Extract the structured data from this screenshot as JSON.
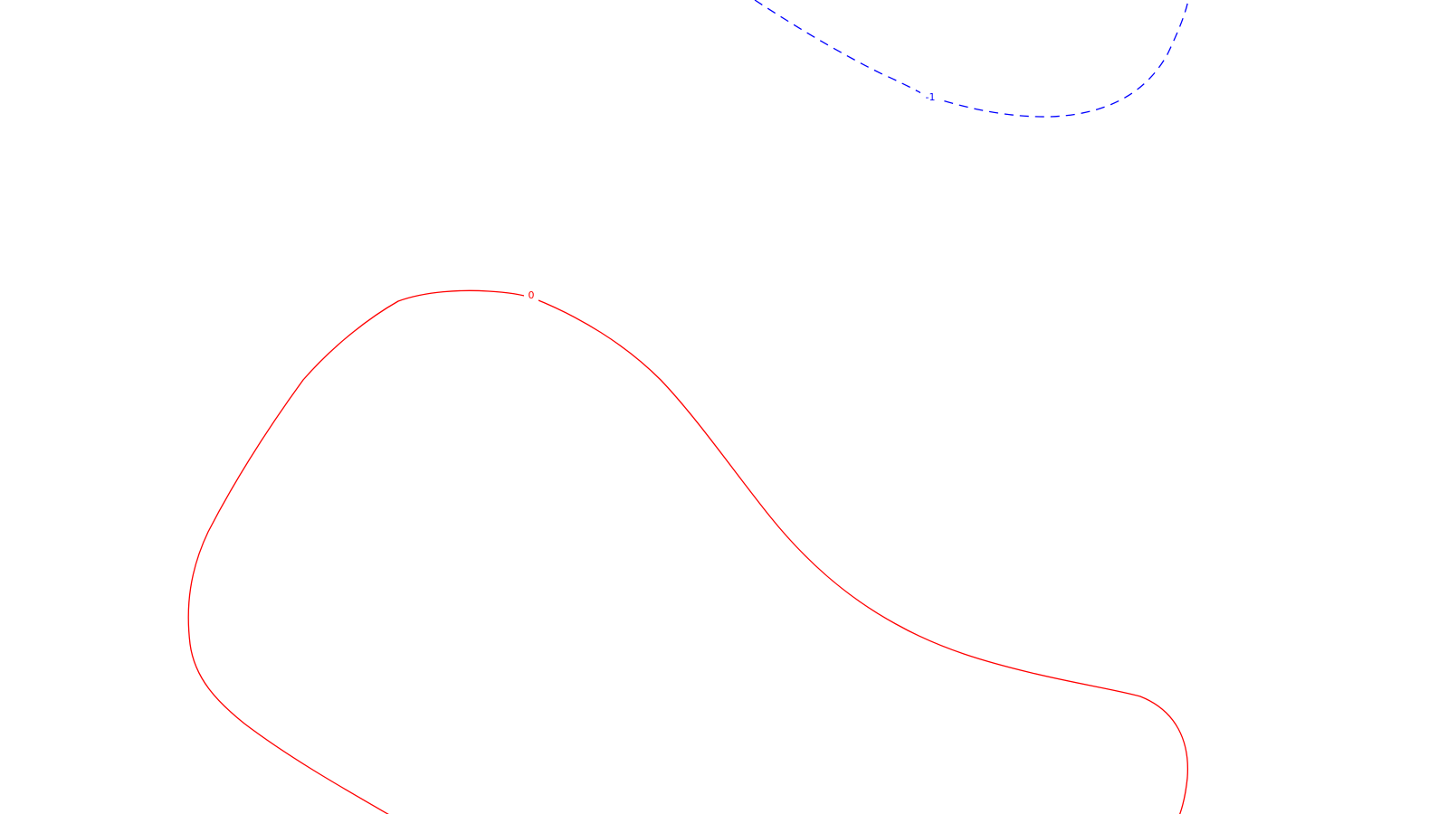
{
  "chart_data": {
    "type": "line",
    "title": "",
    "xlabel": "",
    "ylabel": "",
    "grid": false,
    "series": [
      {
        "label": "-1",
        "color": "#0000ff",
        "dashed": true
      },
      {
        "label": "0",
        "color": "#ff0000",
        "dashed": false
      }
    ]
  }
}
